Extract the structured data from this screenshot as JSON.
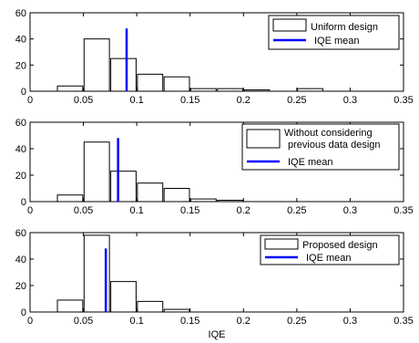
{
  "chart_data": [
    {
      "type": "bar",
      "legend_position": "top-right",
      "legend_entries": [
        "Uniform design",
        "IQE mean"
      ],
      "xlim": [
        0,
        0.35
      ],
      "ylim": [
        0,
        60
      ],
      "xticks": [
        "0",
        "0.05",
        "0.1",
        "0.15",
        "0.2",
        "0.25",
        "0.3",
        "0.35"
      ],
      "yticks": [
        "0",
        "20",
        "40",
        "60"
      ],
      "bin_width": 0.025,
      "bin_centers": [
        0.0375,
        0.0625,
        0.0875,
        0.1125,
        0.1375,
        0.1625,
        0.1875,
        0.2125,
        0.2375,
        0.2625
      ],
      "counts": [
        4,
        40,
        25,
        13,
        11,
        2,
        2,
        1,
        0,
        2
      ],
      "mean_x": 0.0905,
      "mean_height": 48,
      "bar_color": "#ffffff",
      "mean_color": "#0000ff"
    },
    {
      "type": "bar",
      "legend_position": "top-right",
      "legend_entries": [
        "Without considering previous data design",
        "IQE mean"
      ],
      "xlim": [
        0,
        0.35
      ],
      "ylim": [
        0,
        60
      ],
      "xticks": [
        "0",
        "0.05",
        "0.1",
        "0.15",
        "0.2",
        "0.25",
        "0.3",
        "0.35"
      ],
      "yticks": [
        "0",
        "20",
        "40",
        "60"
      ],
      "bin_width": 0.025,
      "bin_centers": [
        0.0375,
        0.0625,
        0.0875,
        0.1125,
        0.1375,
        0.1625,
        0.1875,
        0.2125,
        0.2375,
        0.2625
      ],
      "counts": [
        5,
        45,
        23,
        14,
        10,
        2,
        1,
        0,
        0,
        0
      ],
      "mean_x": 0.0825,
      "mean_height": 48,
      "bar_color": "#ffffff",
      "mean_color": "#0000ff"
    },
    {
      "type": "bar",
      "legend_position": "top-right",
      "legend_entries": [
        "Proposed design",
        "IQE mean"
      ],
      "xlim": [
        0,
        0.35
      ],
      "ylim": [
        0,
        60
      ],
      "xticks": [
        "0",
        "0.05",
        "0.1",
        "0.15",
        "0.2",
        "0.25",
        "0.3",
        "0.35"
      ],
      "yticks": [
        "0",
        "20",
        "40",
        "60"
      ],
      "bin_width": 0.025,
      "bin_centers": [
        0.0375,
        0.0625,
        0.0875,
        0.1125,
        0.1375
      ],
      "counts": [
        9,
        58,
        23,
        8,
        2
      ],
      "mean_x": 0.071,
      "mean_height": 48,
      "bar_color": "#ffffff",
      "mean_color": "#0000ff"
    }
  ],
  "xlabel": "IQE"
}
